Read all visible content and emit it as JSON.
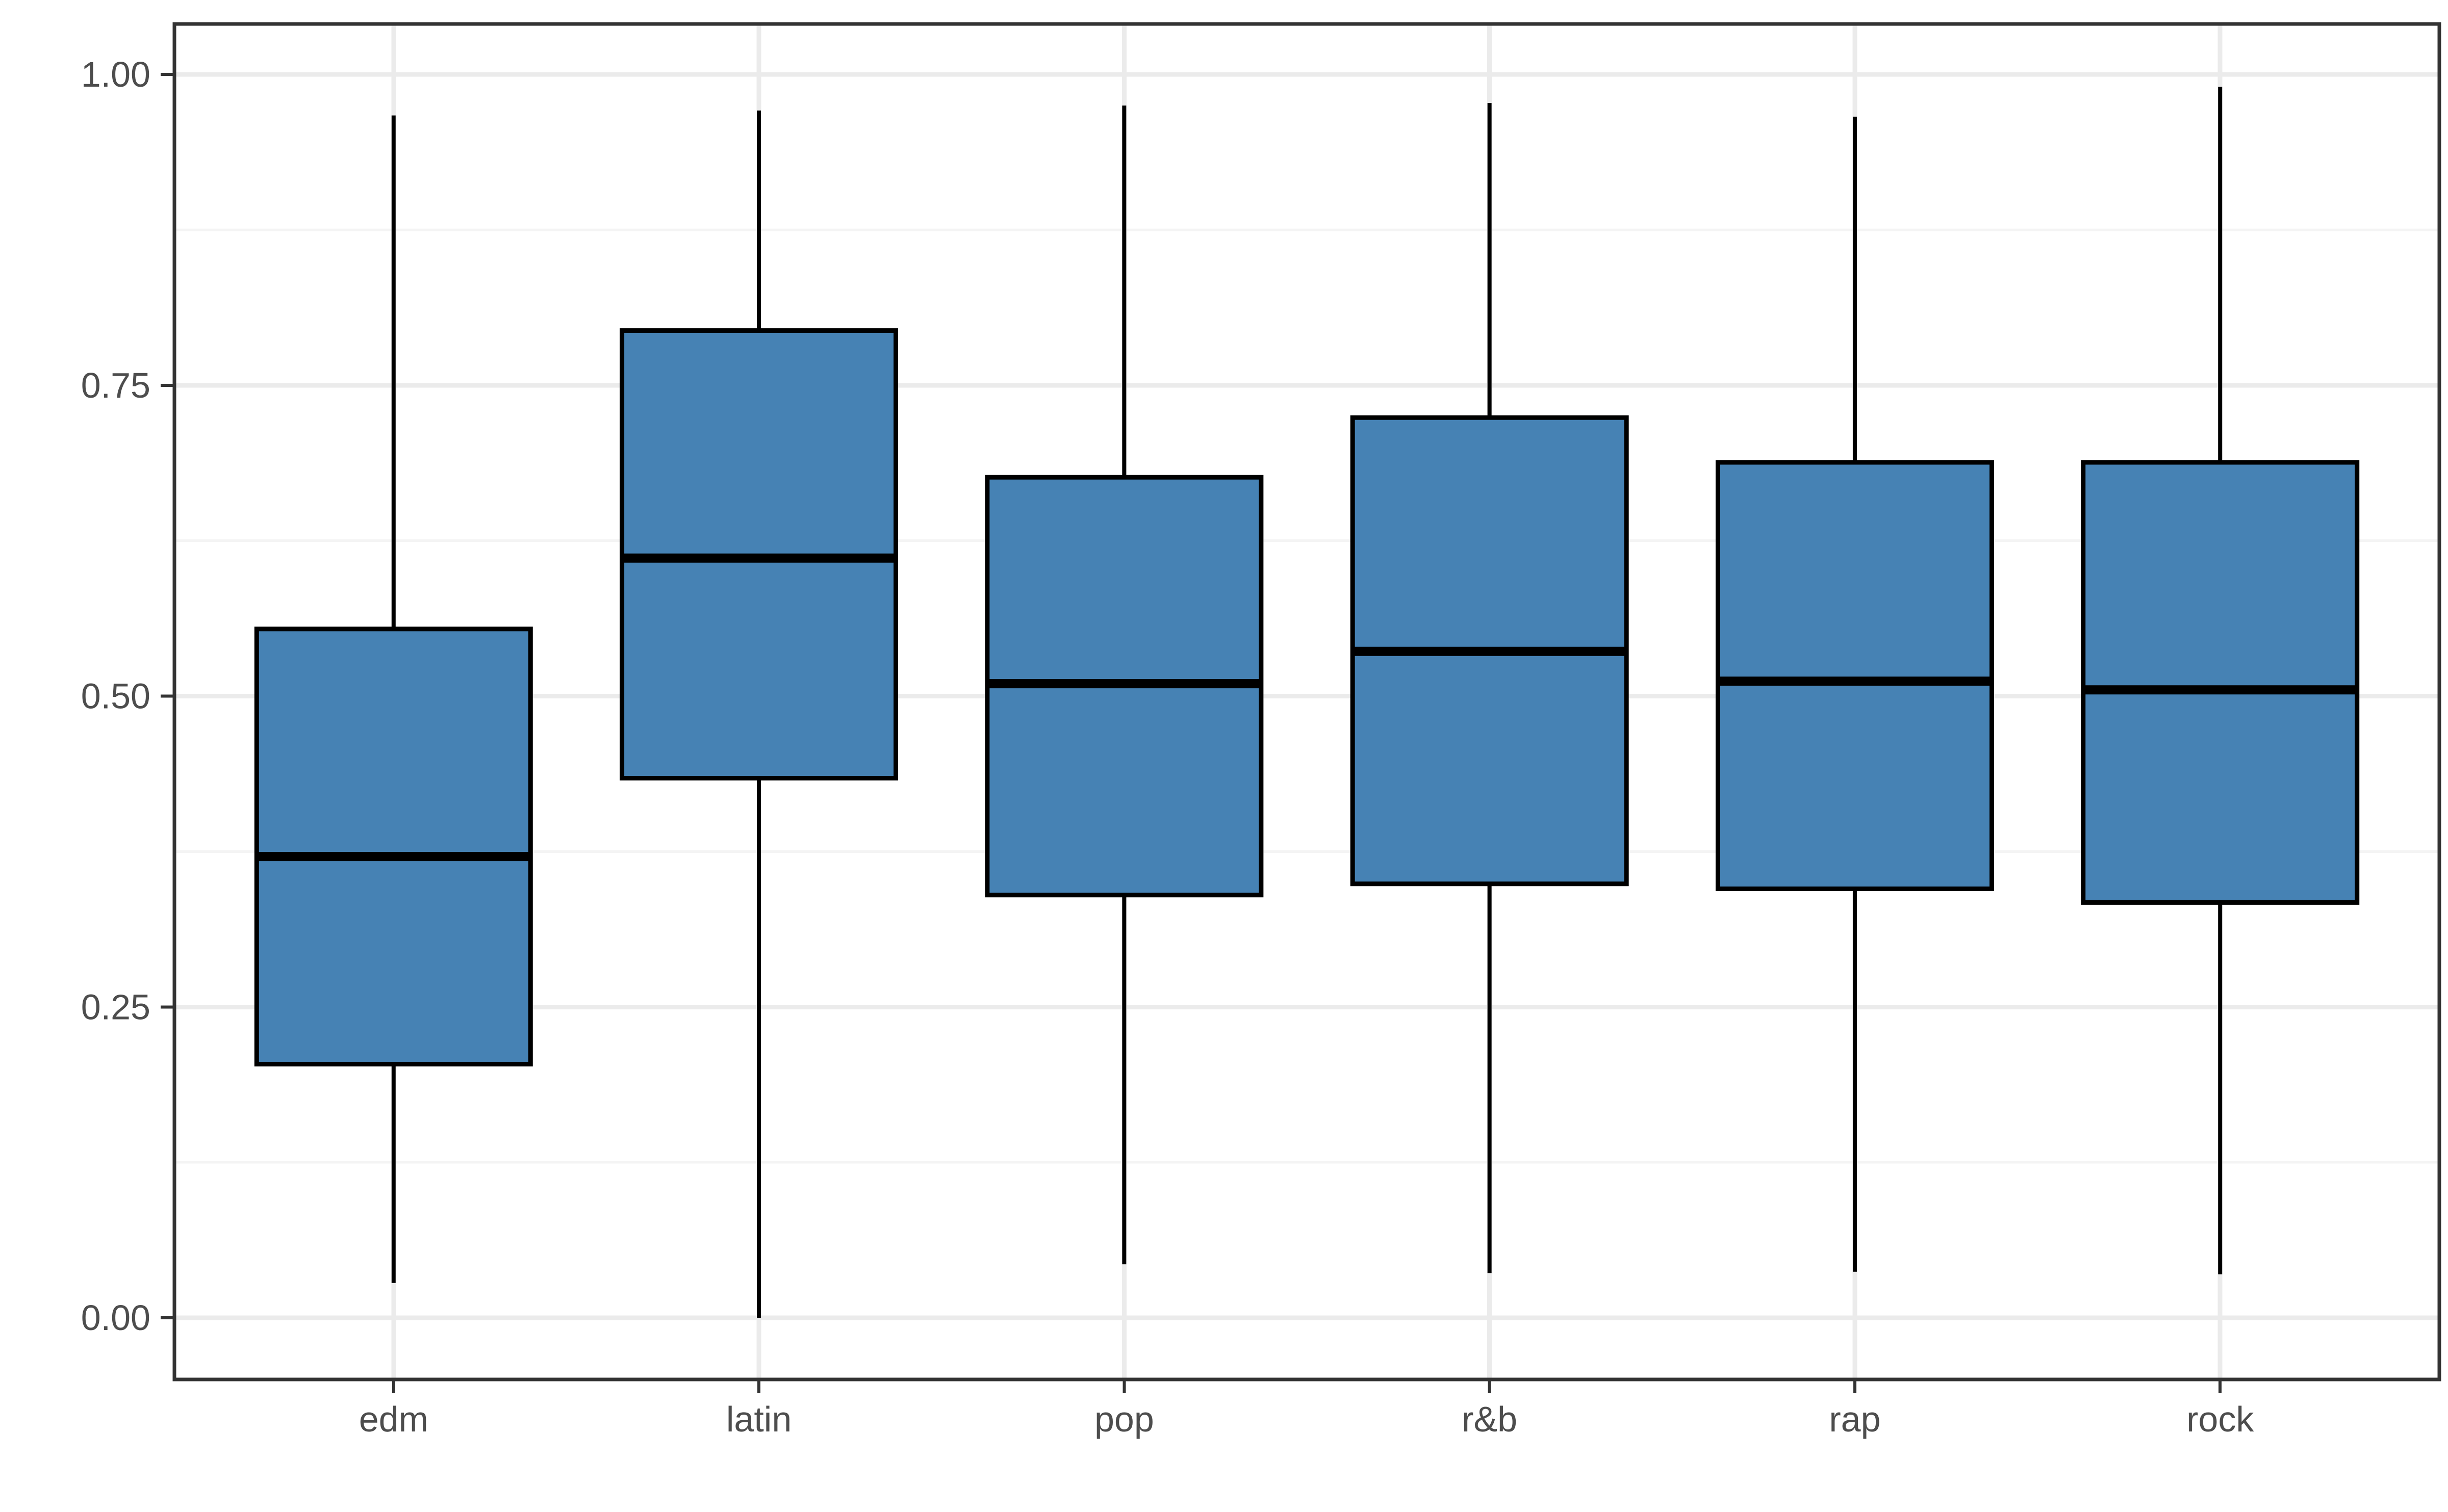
{
  "figure": {
    "background": "#FFFFFF",
    "kind": "ggplot-boxplot"
  },
  "chart_data": {
    "type": "boxplot",
    "title": "",
    "xlabel": "",
    "ylabel": "",
    "categories": [
      "edm",
      "latin",
      "pop",
      "r&b",
      "rap",
      "rock"
    ],
    "series": [
      {
        "label": "edm",
        "min": 0.028,
        "q1": 0.204,
        "median": 0.371,
        "q3": 0.554,
        "max": 0.967
      },
      {
        "label": "latin",
        "min": 0.0,
        "q1": 0.434,
        "median": 0.611,
        "q3": 0.794,
        "max": 0.971
      },
      {
        "label": "pop",
        "min": 0.043,
        "q1": 0.34,
        "median": 0.51,
        "q3": 0.676,
        "max": 0.975
      },
      {
        "label": "r&b",
        "min": 0.036,
        "q1": 0.349,
        "median": 0.536,
        "q3": 0.724,
        "max": 0.977
      },
      {
        "label": "rap",
        "min": 0.037,
        "q1": 0.345,
        "median": 0.512,
        "q3": 0.688,
        "max": 0.966
      },
      {
        "label": "rock",
        "min": 0.035,
        "q1": 0.334,
        "median": 0.505,
        "q3": 0.688,
        "max": 0.99
      }
    ],
    "y_ticks": [
      {
        "label": "0.00",
        "value": 0.0
      },
      {
        "label": "0.25",
        "value": 0.25
      },
      {
        "label": "0.50",
        "value": 0.5
      },
      {
        "label": "0.75",
        "value": 0.75
      },
      {
        "label": "1.00",
        "value": 1.0
      }
    ],
    "y_minor_gridlines": [
      0.125,
      0.375,
      0.625,
      0.875
    ],
    "ylim": [
      0,
      1
    ],
    "legend": "none",
    "grid": "horizontal major+minor, vertical major at category centers",
    "outliers_shown": false,
    "colors": {
      "box_fill": "#4682B4",
      "box_stroke": "#000000",
      "median_stroke": "#000000",
      "whisker_stroke": "#000000",
      "grid_major": "#EBEBEB",
      "grid_minor": "#F4F4F4",
      "panel_border": "#333333",
      "tick_mark": "#333333",
      "axis_text": "#4D4D4D",
      "panel_background": "#FFFFFF"
    }
  }
}
